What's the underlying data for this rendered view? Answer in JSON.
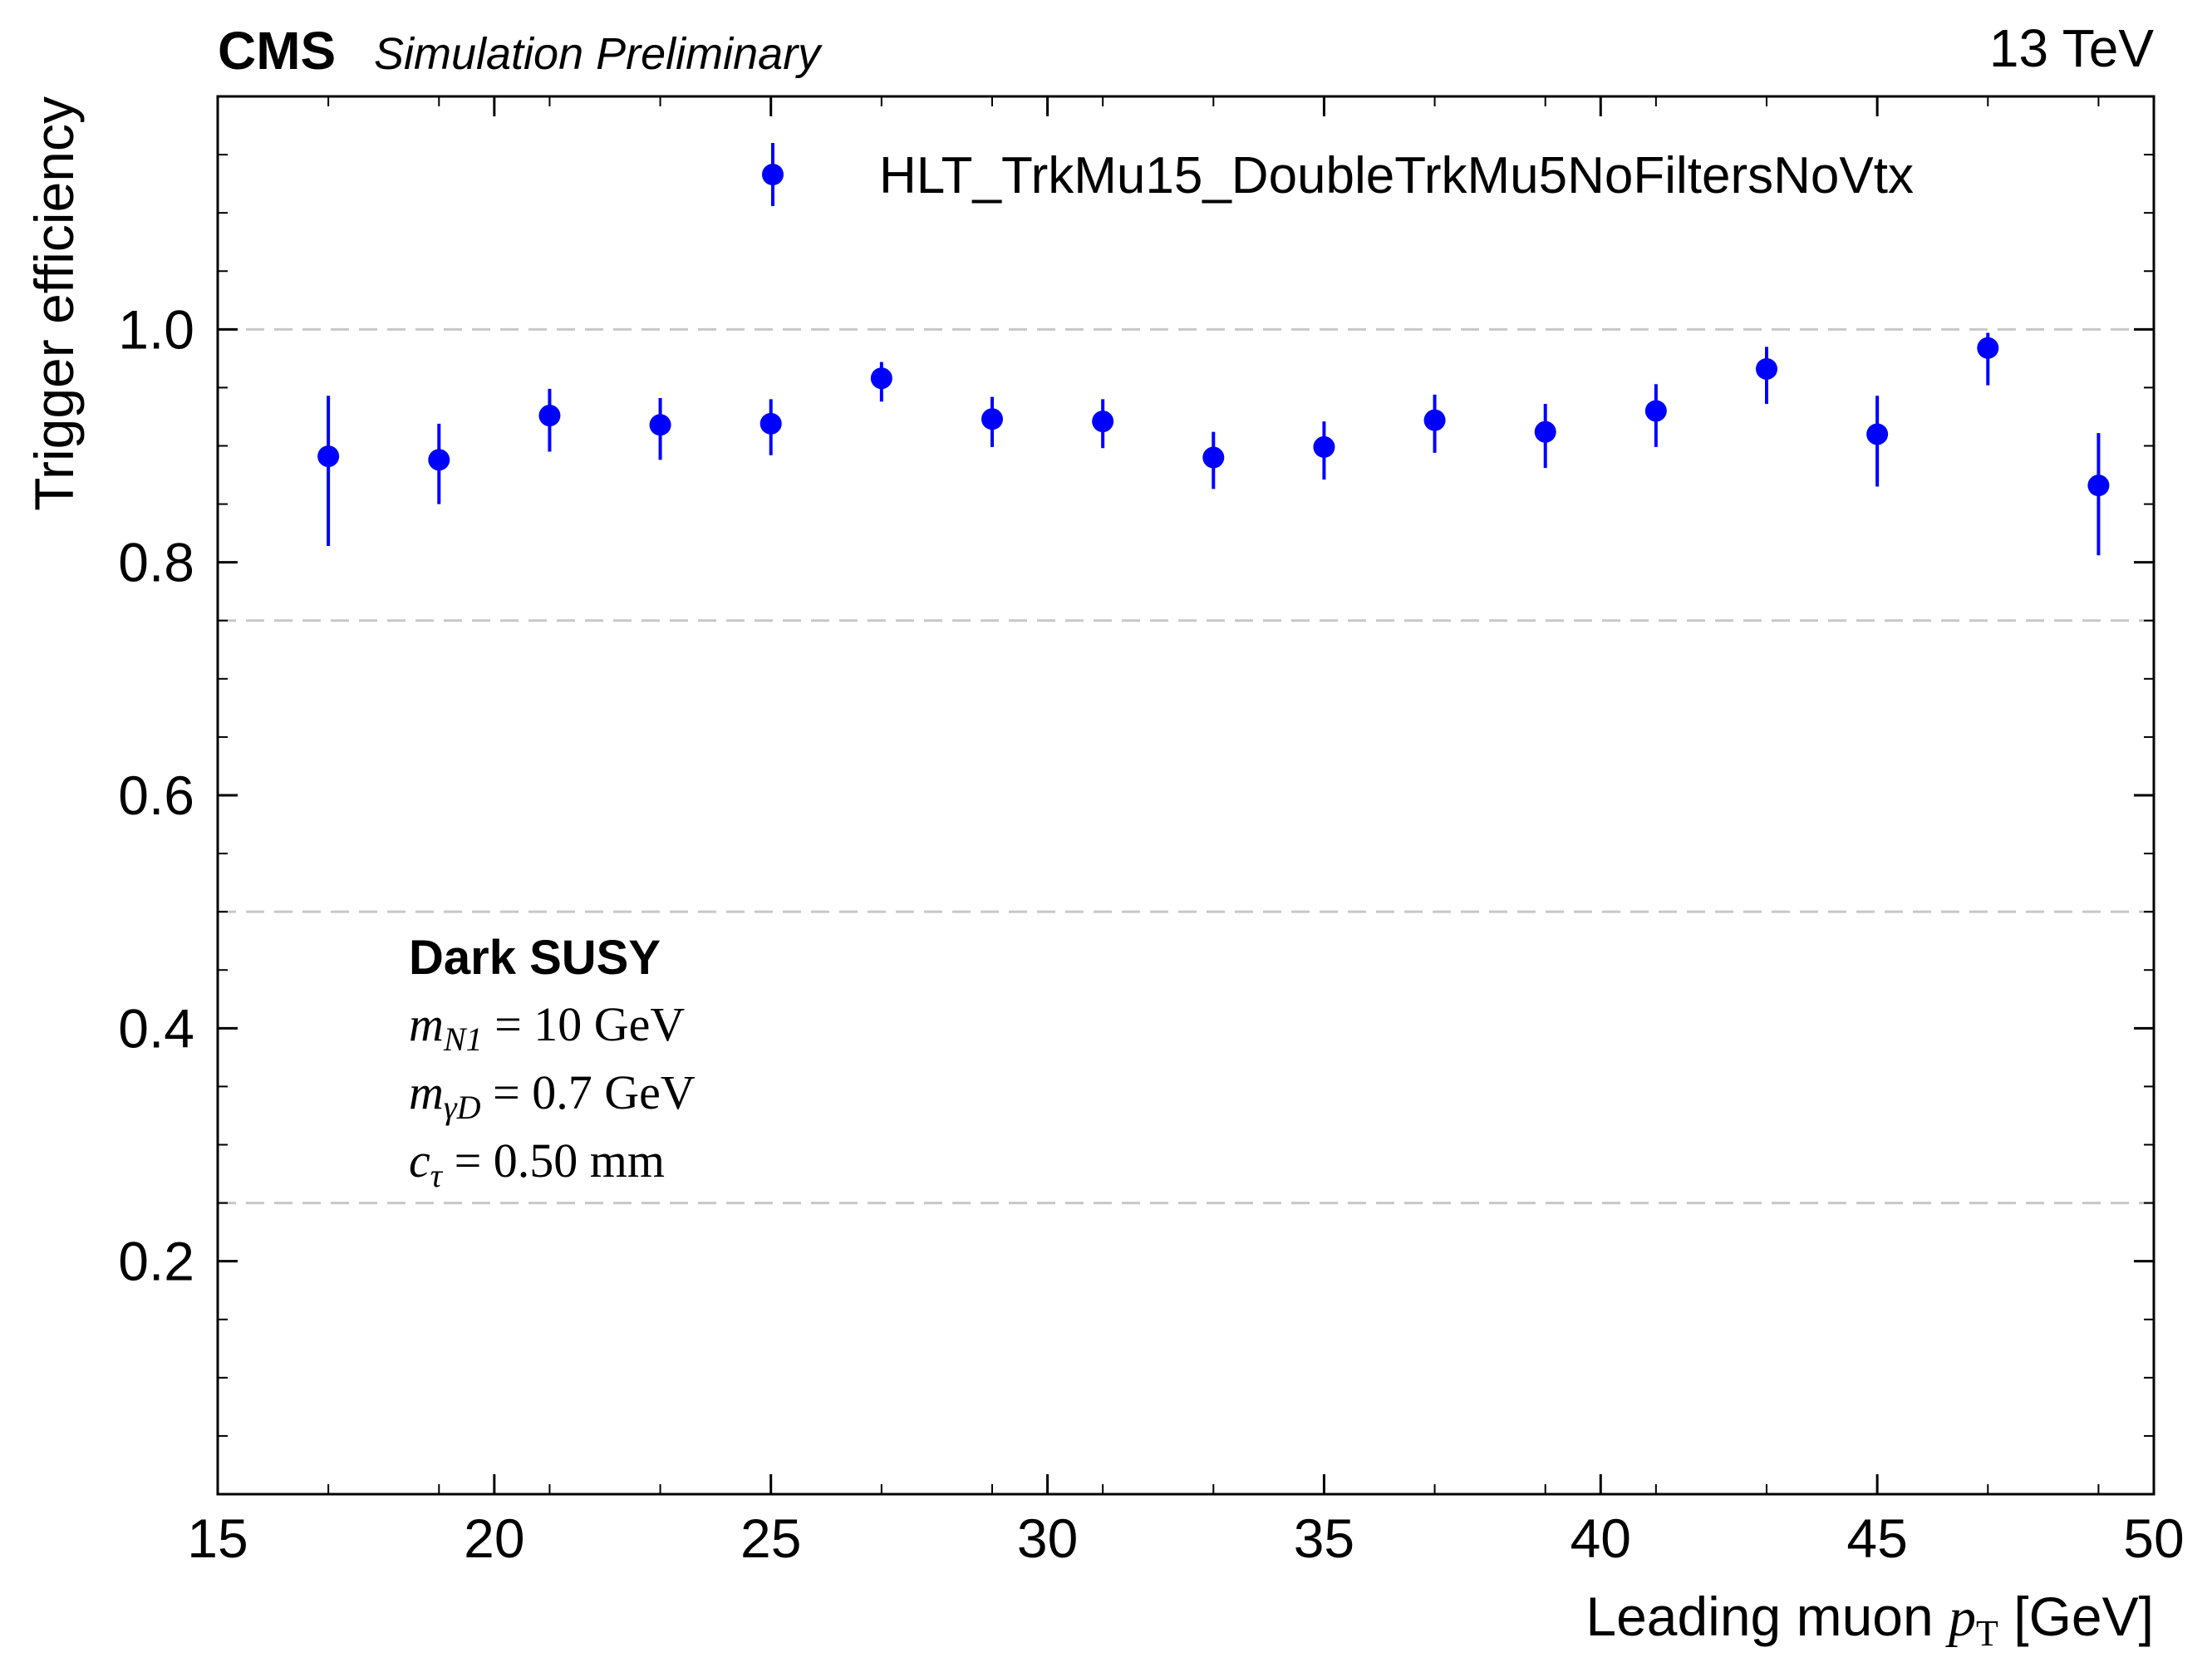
{
  "header": {
    "experiment": "CMS",
    "status": "Simulation Preliminary",
    "energy": "13 TeV"
  },
  "annotation": {
    "title": "Dark SUSY",
    "line1": {
      "sym": "m",
      "sub": "N1",
      "rest": " = 10 GeV"
    },
    "line2": {
      "sym": "m",
      "sub": "γD",
      "rest": " = 0.7 GeV"
    },
    "line3": {
      "sym": "c",
      "sub": "τ",
      "rest": " = 0.50 mm"
    }
  },
  "chart_data": {
    "type": "scatter",
    "xlabel": "Leading muon p_T [GeV]",
    "xlabel_parts": {
      "pre": "Leading muon ",
      "sym": "p",
      "sub": "T",
      "post": " [GeV]"
    },
    "ylabel": "Trigger efficiency",
    "xlim": [
      15,
      50
    ],
    "ylim": [
      0,
      1.2
    ],
    "x_ticks": [
      15,
      20,
      25,
      30,
      35,
      40,
      45,
      50
    ],
    "x_tick_labels": [
      "15",
      "20",
      "25",
      "30",
      "35",
      "40",
      "45",
      "50"
    ],
    "y_ticks": [
      0.2,
      0.4,
      0.6,
      0.8,
      1.0
    ],
    "y_tick_labels": [
      "0.2",
      "0.4",
      "0.6",
      "0.8",
      "1.0"
    ],
    "grid": {
      "axis": "y",
      "values": [
        0.25,
        0.5,
        0.75,
        1.0
      ],
      "style": "dashed"
    },
    "legend_position": "top-right",
    "series": [
      {
        "name": "HLT_TrkMu15_DoubleTrkMu5NoFiltersNoVtx",
        "color": "#0000ff",
        "x": [
          17,
          19,
          21,
          23,
          25,
          27,
          29,
          31,
          33,
          35,
          37,
          39,
          41,
          43,
          45,
          47,
          49
        ],
        "y": [
          0.891,
          0.888,
          0.926,
          0.918,
          0.919,
          0.958,
          0.923,
          0.921,
          0.89,
          0.899,
          0.922,
          0.912,
          0.93,
          0.966,
          0.91,
          0.984,
          0.866
        ],
        "yerr_low": [
          0.077,
          0.038,
          0.031,
          0.03,
          0.027,
          0.02,
          0.024,
          0.023,
          0.027,
          0.028,
          0.028,
          0.031,
          0.031,
          0.03,
          0.045,
          0.032,
          0.06
        ],
        "yerr_high": [
          0.052,
          0.031,
          0.023,
          0.023,
          0.021,
          0.014,
          0.019,
          0.019,
          0.022,
          0.022,
          0.022,
          0.024,
          0.023,
          0.019,
          0.033,
          0.013,
          0.045
        ]
      }
    ]
  }
}
